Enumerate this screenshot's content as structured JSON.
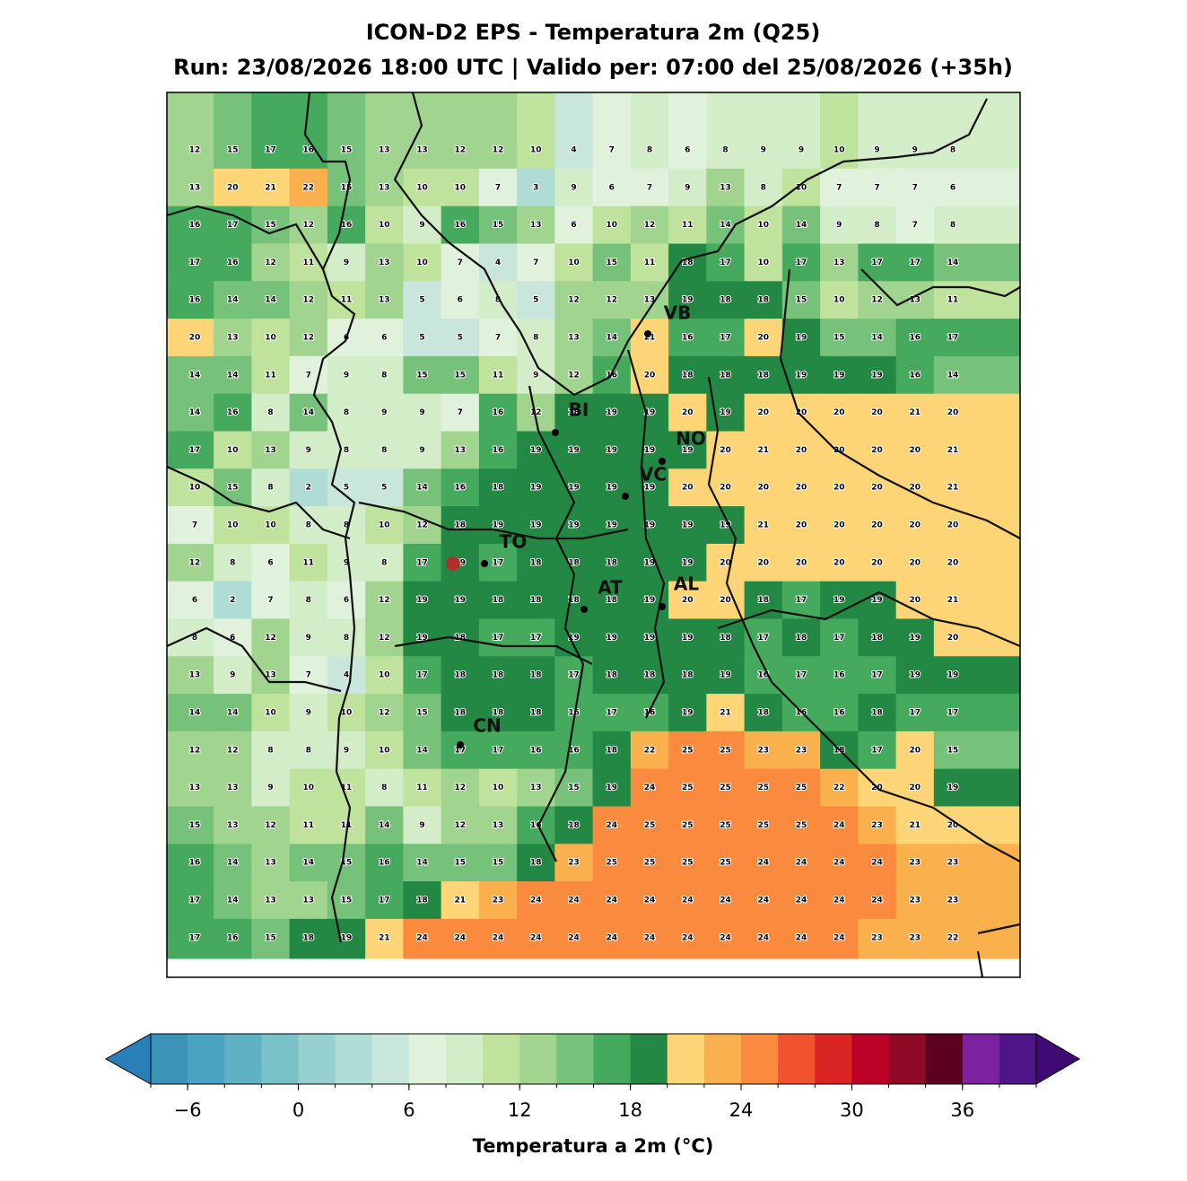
{
  "title": "ICON-D2 EPS - Temperatura 2m (Q25)",
  "subtitle": "Run: 23/08/2026 18:00 UTC | Valido per: 07:00 del 25/08/2026 (+35h)",
  "grid": {
    "values": [
      [
        12,
        15,
        17,
        16,
        15,
        13,
        13,
        12,
        12,
        10,
        4,
        7,
        8,
        6,
        8,
        9,
        9,
        10,
        9,
        9,
        8
      ],
      [
        13,
        20,
        21,
        22,
        15,
        13,
        10,
        10,
        7,
        3,
        9,
        6,
        7,
        9,
        13,
        8,
        10,
        7,
        7,
        7,
        6
      ],
      [
        16,
        17,
        15,
        12,
        16,
        10,
        9,
        16,
        15,
        13,
        6,
        10,
        12,
        11,
        14,
        10,
        14,
        9,
        8,
        7,
        8
      ],
      [
        17,
        16,
        12,
        11,
        9,
        13,
        10,
        7,
        4,
        7,
        10,
        15,
        11,
        18,
        17,
        10,
        17,
        13,
        17,
        17,
        14
      ],
      [
        16,
        14,
        14,
        12,
        11,
        13,
        5,
        6,
        8,
        5,
        12,
        12,
        13,
        19,
        18,
        18,
        15,
        10,
        12,
        13,
        11
      ],
      [
        20,
        13,
        10,
        12,
        6,
        6,
        5,
        5,
        7,
        8,
        13,
        14,
        21,
        16,
        17,
        20,
        19,
        15,
        14,
        16,
        17
      ],
      [
        14,
        14,
        11,
        7,
        9,
        8,
        15,
        15,
        11,
        9,
        12,
        16,
        20,
        18,
        18,
        18,
        19,
        19,
        19,
        16,
        14
      ],
      [
        14,
        16,
        8,
        14,
        8,
        9,
        9,
        7,
        16,
        12,
        18,
        19,
        19,
        20,
        19,
        20,
        20,
        20,
        20,
        21,
        20
      ],
      [
        17,
        10,
        13,
        9,
        8,
        8,
        9,
        13,
        16,
        19,
        19,
        19,
        19,
        19,
        20,
        21,
        20,
        20,
        20,
        20,
        21
      ],
      [
        10,
        15,
        8,
        2,
        5,
        5,
        14,
        16,
        18,
        19,
        19,
        19,
        19,
        20,
        20,
        20,
        20,
        20,
        20,
        20,
        21
      ],
      [
        7,
        10,
        10,
        8,
        8,
        10,
        12,
        18,
        19,
        19,
        19,
        19,
        19,
        19,
        19,
        21,
        20,
        20,
        20,
        20,
        20
      ],
      [
        12,
        8,
        6,
        11,
        9,
        8,
        17,
        19,
        17,
        18,
        18,
        18,
        19,
        19,
        20,
        20,
        20,
        20,
        20,
        20,
        20
      ],
      [
        6,
        2,
        7,
        8,
        6,
        12,
        19,
        19,
        18,
        18,
        18,
        18,
        19,
        20,
        20,
        18,
        17,
        19,
        19,
        20,
        21
      ],
      [
        8,
        6,
        12,
        9,
        8,
        12,
        19,
        18,
        17,
        17,
        19,
        19,
        19,
        19,
        18,
        17,
        18,
        17,
        18,
        19,
        20
      ],
      [
        13,
        9,
        13,
        7,
        4,
        10,
        17,
        18,
        18,
        18,
        17,
        18,
        18,
        18,
        19,
        16,
        17,
        16,
        17,
        19,
        19
      ],
      [
        14,
        14,
        10,
        9,
        10,
        12,
        15,
        18,
        18,
        18,
        16,
        17,
        16,
        19,
        21,
        18,
        16,
        16,
        18,
        17,
        17
      ],
      [
        12,
        12,
        8,
        8,
        9,
        10,
        14,
        17,
        17,
        16,
        16,
        18,
        22,
        25,
        25,
        23,
        23,
        18,
        17,
        20,
        15
      ],
      [
        13,
        13,
        9,
        10,
        11,
        8,
        11,
        12,
        10,
        13,
        15,
        19,
        24,
        25,
        25,
        25,
        25,
        22,
        20,
        20,
        19
      ],
      [
        15,
        13,
        12,
        11,
        11,
        14,
        9,
        12,
        13,
        16,
        18,
        24,
        25,
        25,
        25,
        25,
        25,
        24,
        23,
        21,
        20
      ],
      [
        16,
        14,
        13,
        14,
        15,
        16,
        14,
        15,
        15,
        18,
        23,
        25,
        25,
        25,
        25,
        24,
        24,
        24,
        24,
        23,
        23
      ],
      [
        17,
        14,
        13,
        13,
        15,
        17,
        18,
        21,
        23,
        24,
        24,
        24,
        24,
        24,
        24,
        24,
        24,
        24,
        24,
        23,
        23
      ],
      [
        17,
        16,
        15,
        18,
        19,
        21,
        24,
        24,
        24,
        24,
        24,
        24,
        24,
        24,
        24,
        24,
        24,
        24,
        23,
        23,
        22
      ]
    ]
  },
  "cities": [
    "VB",
    "BI",
    "NO",
    "VC",
    "TO",
    "AT",
    "AL",
    "CN"
  ],
  "colorbar": {
    "label": "Temperatura a 2m (°C)",
    "levels": [
      -8,
      -6,
      -4,
      -2,
      0,
      2,
      4,
      6,
      8,
      10,
      12,
      14,
      16,
      18,
      20,
      22,
      24,
      26,
      28,
      30,
      32,
      34,
      36,
      38,
      40
    ],
    "colors": [
      "#3b94b8",
      "#4aa3c0",
      "#5fb2c4",
      "#79c2c8",
      "#95d0ce",
      "#afdcd4",
      "#c8e6db",
      "#e0f2dc",
      "#d4edc9",
      "#bfe39d",
      "#a1d58f",
      "#77c27a",
      "#46aa5e",
      "#238843",
      "#fdd576",
      "#fbb04e",
      "#f98a3e",
      "#f0532e",
      "#db2424",
      "#bd0026",
      "#8e0a26",
      "#5c0021",
      "#7a22a0",
      "#4f1486"
    ],
    "under": "#2a7fb8",
    "over": "#3f0a72",
    "ticks": [
      {
        "value": -6,
        "label": "−6"
      },
      0,
      6,
      12,
      18,
      24,
      30,
      36
    ]
  }
}
